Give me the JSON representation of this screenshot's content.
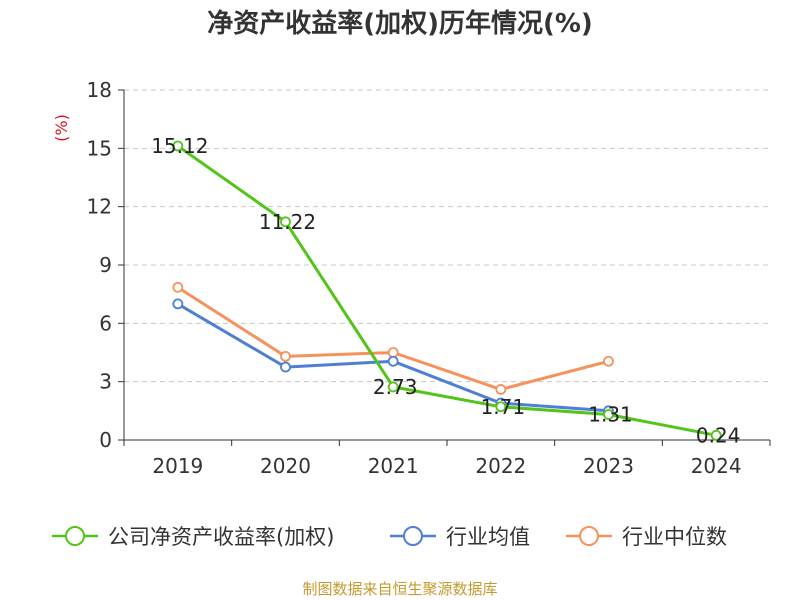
{
  "chart_data": {
    "type": "line",
    "title": "净资产收益率(加权)历年情况(%)",
    "ylabel": "(%)",
    "ylim": [
      0,
      18
    ],
    "yticks": [
      0,
      3,
      6,
      9,
      12,
      15,
      18
    ],
    "categories": [
      "2019",
      "2020",
      "2021",
      "2022",
      "2023",
      "2024"
    ],
    "grid": true,
    "legend_position": "bottom",
    "series": [
      {
        "name": "公司净资产收益率(加权)",
        "color": "#52c41a",
        "values": [
          15.12,
          11.22,
          2.73,
          1.71,
          1.31,
          0.24
        ],
        "labels": [
          "15.12",
          "11.22",
          "2.73",
          "1.71",
          "1.31",
          "0.24"
        ]
      },
      {
        "name": "行业均值",
        "color": "#4e7fd4",
        "values": [
          7.0,
          3.75,
          4.05,
          1.9,
          1.5,
          null
        ]
      },
      {
        "name": "行业中位数",
        "color": "#f7915b",
        "values": [
          7.85,
          4.3,
          4.5,
          2.6,
          4.05,
          null
        ]
      }
    ],
    "source": "制图数据来自恒生聚源数据库"
  }
}
